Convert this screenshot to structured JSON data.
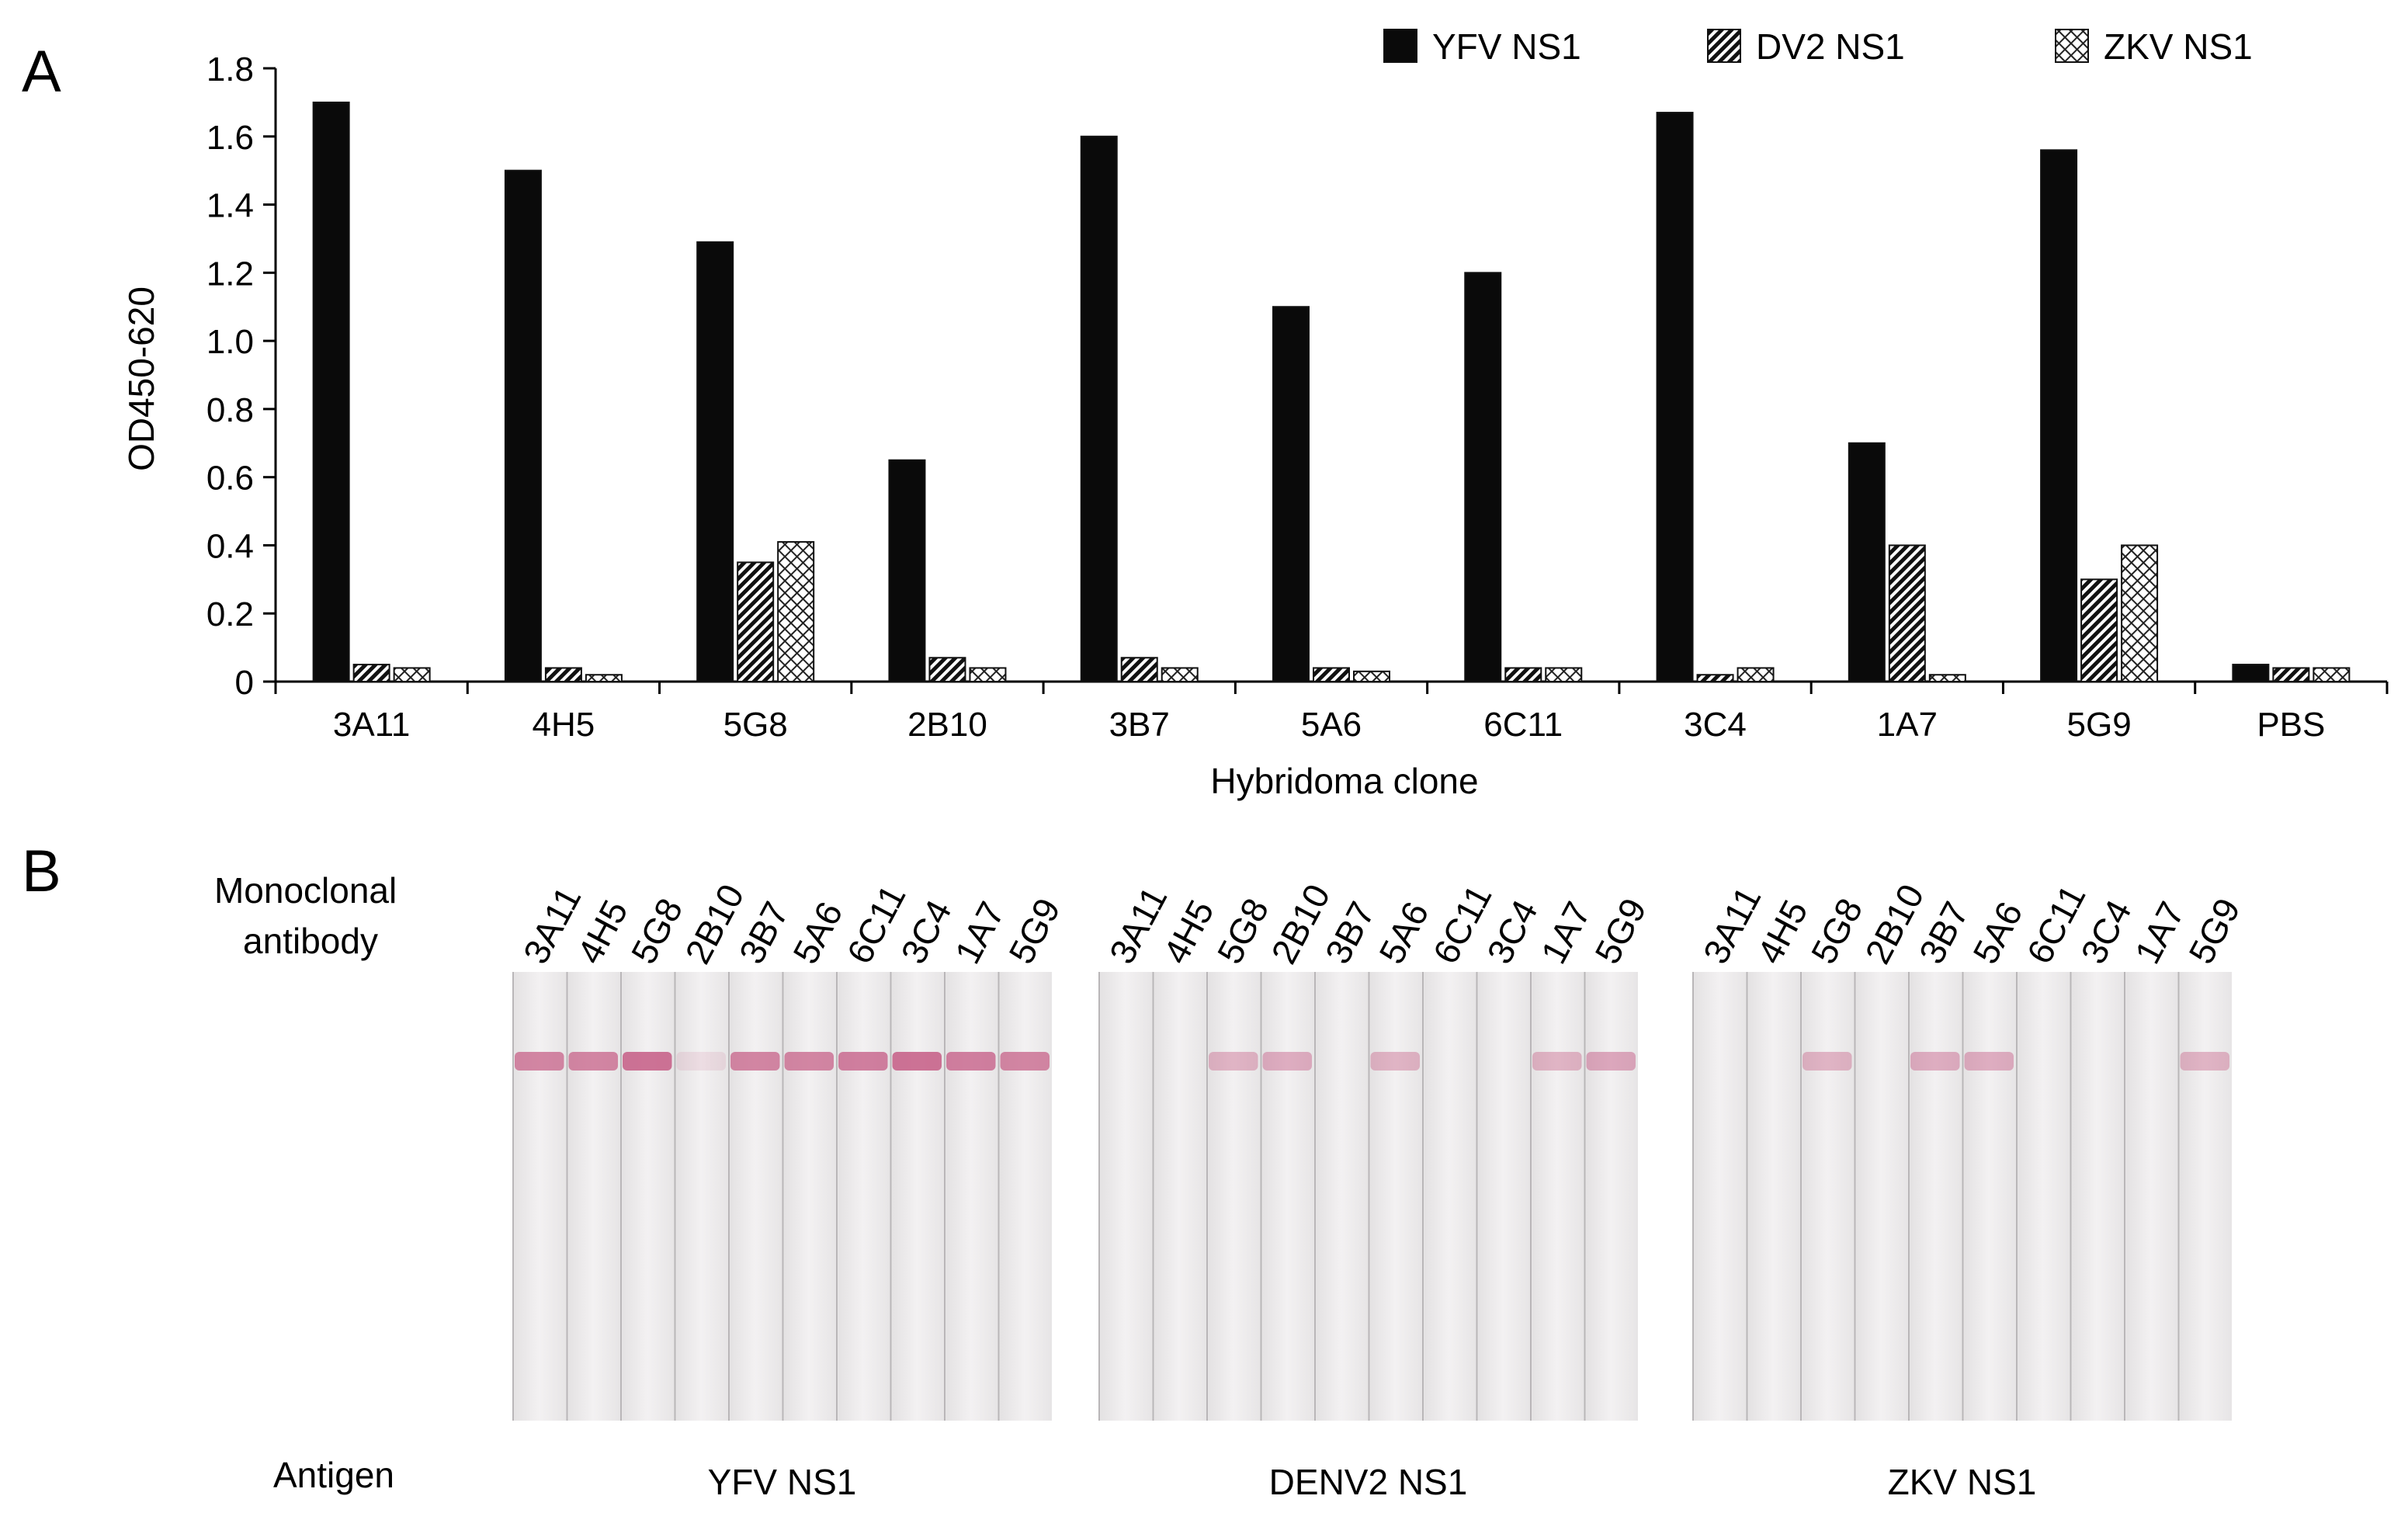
{
  "panels": {
    "a_label": "A",
    "b_label": "B"
  },
  "chart_data": {
    "type": "bar",
    "title": "",
    "xlabel": "Hybridoma clone",
    "ylabel": "OD450-620",
    "ylim": [
      0,
      1.8
    ],
    "yticks": [
      "0",
      "0.2",
      "0.4",
      "0.6",
      "0.8",
      "1.0",
      "1.2",
      "1.4",
      "1.6",
      "1.8"
    ],
    "legend_position": "top-right",
    "categories": [
      "3A11",
      "4H5",
      "5G8",
      "2B10",
      "3B7",
      "5A6",
      "6C11",
      "3C4",
      "1A7",
      "5G9",
      "PBS"
    ],
    "series": [
      {
        "name": "YFV NS1",
        "pattern": "solid",
        "values": [
          1.7,
          1.5,
          1.29,
          0.65,
          1.6,
          1.1,
          1.2,
          1.67,
          0.7,
          1.56,
          0.05
        ]
      },
      {
        "name": "DV2 NS1",
        "pattern": "diagonal-hatch",
        "values": [
          0.05,
          0.04,
          0.35,
          0.07,
          0.07,
          0.04,
          0.04,
          0.02,
          0.4,
          0.3,
          0.04
        ]
      },
      {
        "name": "ZKV NS1",
        "pattern": "crosshatch",
        "values": [
          0.04,
          0.02,
          0.41,
          0.04,
          0.04,
          0.03,
          0.04,
          0.04,
          0.02,
          0.4,
          0.04
        ]
      }
    ]
  },
  "strip_test": {
    "row_label_top": "Monoclonal antibody",
    "row_label_top_lines": [
      "Monoclonal",
      "antibody"
    ],
    "row_label_bottom": "Antigen",
    "line_color": "#c96a8f",
    "blots": [
      {
        "antigen": "YFV NS1",
        "clones": [
          "3A11",
          "4H5",
          "5G8",
          "2B10",
          "3B7",
          "5A6",
          "6C11",
          "3C4",
          "1A7",
          "5G9"
        ],
        "band_intensity": [
          0.8,
          0.8,
          0.95,
          0.15,
          0.8,
          0.8,
          0.85,
          0.95,
          0.85,
          0.8
        ]
      },
      {
        "antigen": "DENV2 NS1",
        "clones": [
          "3A11",
          "4H5",
          "5G8",
          "2B10",
          "3B7",
          "5A6",
          "6C11",
          "3C4",
          "1A7",
          "5G9"
        ],
        "band_intensity": [
          0,
          0,
          0.45,
          0.5,
          0,
          0.45,
          0,
          0,
          0.45,
          0.55
        ]
      },
      {
        "antigen": "ZKV NS1",
        "clones": [
          "3A11",
          "4H5",
          "5G8",
          "2B10",
          "3B7",
          "5A6",
          "6C11",
          "3C4",
          "1A7",
          "5G9"
        ],
        "band_intensity": [
          0,
          0,
          0.45,
          0,
          0.5,
          0.5,
          0,
          0,
          0,
          0.45
        ]
      }
    ]
  }
}
